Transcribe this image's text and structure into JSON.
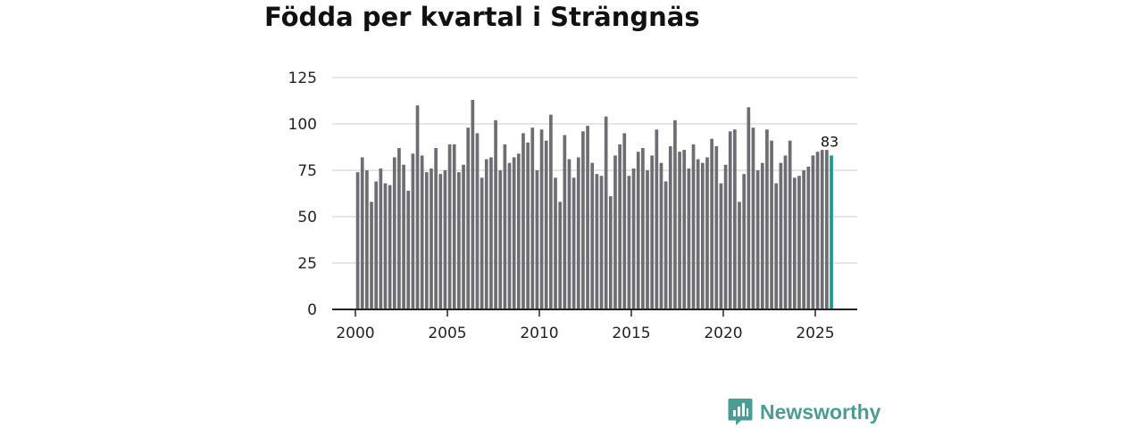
{
  "chart_data": {
    "type": "bar",
    "title": "Födda per kvartal i Strängnäs",
    "xlabel": "",
    "ylabel": "",
    "ylim": [
      0,
      125
    ],
    "yticks": [
      0,
      25,
      50,
      75,
      100,
      125
    ],
    "xticks": [
      2000,
      2005,
      2010,
      2015,
      2020,
      2025
    ],
    "grid": true,
    "x_start_year": 2000,
    "periods_per_year": 4,
    "values": [
      74,
      82,
      75,
      58,
      69,
      76,
      68,
      67,
      82,
      87,
      78,
      64,
      84,
      110,
      83,
      74,
      76,
      87,
      73,
      75,
      89,
      89,
      74,
      78,
      98,
      113,
      95,
      71,
      81,
      82,
      102,
      75,
      89,
      79,
      82,
      84,
      95,
      90,
      98,
      75,
      97,
      91,
      105,
      71,
      58,
      94,
      81,
      71,
      82,
      96,
      99,
      79,
      73,
      72,
      104,
      61,
      83,
      89,
      95,
      72,
      76,
      85,
      87,
      75,
      83,
      97,
      79,
      69,
      88,
      102,
      85,
      86,
      76,
      89,
      81,
      79,
      82,
      92,
      88,
      68,
      78,
      96,
      97,
      58,
      73,
      109,
      98,
      75,
      79,
      97,
      91,
      68,
      79,
      83,
      91,
      71,
      72,
      75,
      77,
      83,
      85,
      86,
      86,
      83
    ],
    "highlight_last": true,
    "last_label": "83",
    "colors": {
      "bar": "#6e6d73",
      "highlight": "#1a9b8f",
      "grid": "#d5d5d5",
      "axis": "#222222"
    }
  },
  "branding": {
    "name": "Newsworthy",
    "color": "#4a9d95",
    "icon": "bar-chart-speech-bubble-icon"
  }
}
